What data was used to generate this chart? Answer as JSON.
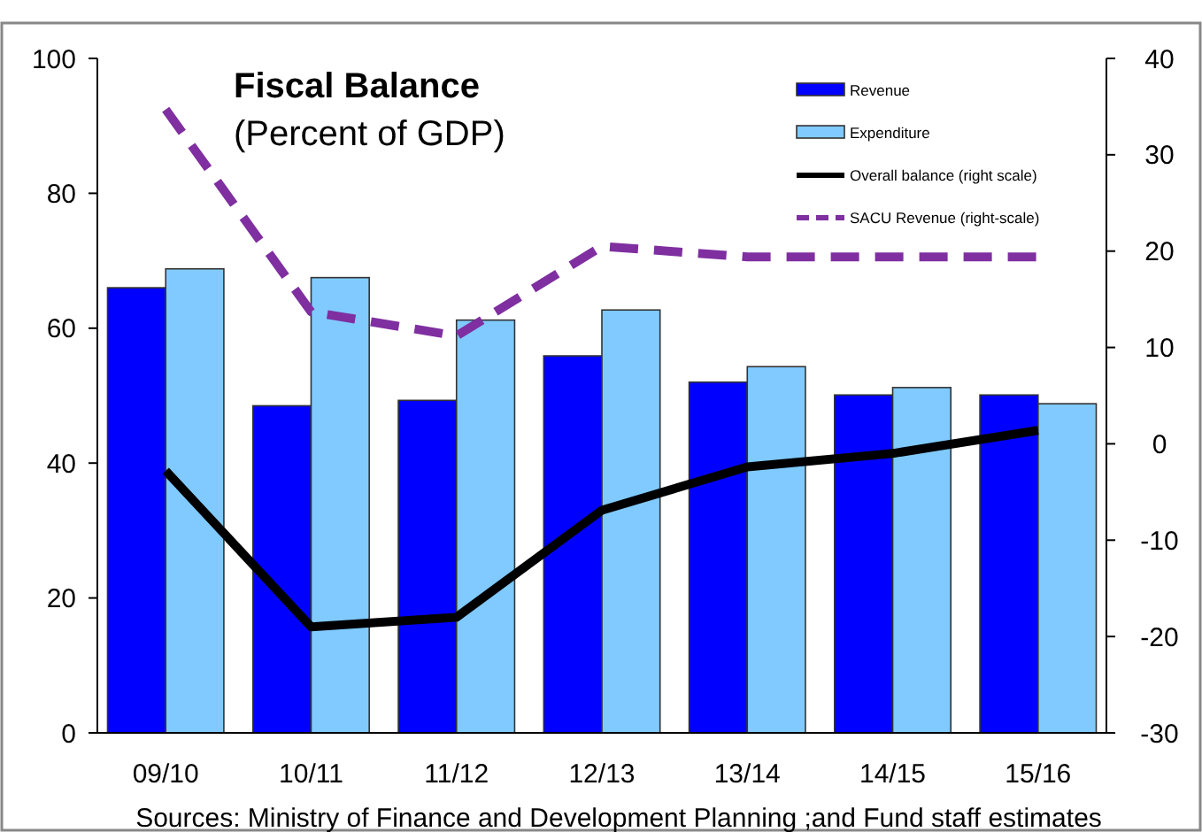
{
  "chart_data": {
    "type": "bar",
    "title": "Fiscal Balance",
    "subtitle": "(Percent of GDP)",
    "categories": [
      "09/10",
      "10/11",
      "11/12",
      "12/13",
      "13/14",
      "14/15",
      "15/16"
    ],
    "series": [
      {
        "name": "Revenue",
        "color": "#0000ff",
        "values": [
          66,
          48.5,
          49.3,
          55.9,
          52,
          50.1,
          50.1
        ]
      },
      {
        "name": "Expenditure",
        "color": "#80caff",
        "values": [
          68.8,
          67.5,
          61.2,
          62.7,
          54.3,
          51.2,
          48.8
        ]
      },
      {
        "name": "Overall balance (right scale)",
        "type": "line",
        "axis": "y2",
        "color": "#000000",
        "line_style": "solid",
        "values": [
          -2.8,
          -19,
          -18,
          -6.9,
          -2.4,
          -1,
          1.4
        ]
      },
      {
        "name": "SACU Revenue (right-scale)",
        "type": "line",
        "axis": "y2",
        "color": "#7f2fa0",
        "line_style": "dashed",
        "values": [
          34.7,
          13.7,
          11.2,
          20.5,
          19.4,
          19.4,
          19.4
        ]
      }
    ],
    "ylim": [
      0,
      100
    ],
    "yticks": [
      0,
      20,
      40,
      60,
      80,
      100
    ],
    "y2lim": [
      -30,
      40
    ],
    "y2ticks": [
      -30,
      -20,
      -10,
      0,
      10,
      20,
      30,
      40
    ],
    "legend": "top right",
    "grid": false,
    "annotations": [
      "Sources: Ministry of Finance and Development Planning ;and Fund staff estimates"
    ]
  }
}
